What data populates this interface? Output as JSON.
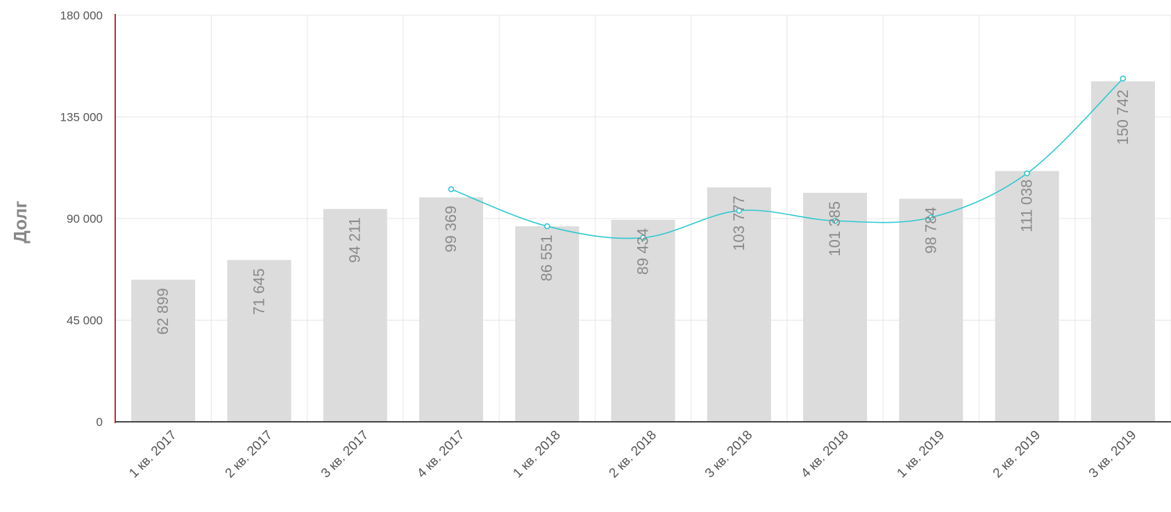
{
  "chart_data": {
    "type": "bar",
    "title": "",
    "xlabel": "",
    "ylabel": "Долг",
    "ylim": [
      0,
      180000
    ],
    "yticks": [
      0,
      45000,
      90000,
      135000,
      180000
    ],
    "ytick_labels": [
      "0",
      "45 000",
      "90 000",
      "135 000",
      "180 000"
    ],
    "grid": true,
    "categories": [
      "1 кв. 2017",
      "2 кв. 2017",
      "3 кв. 2017",
      "4 кв. 2017",
      "1 кв. 2018",
      "2 кв. 2018",
      "3 кв. 2018",
      "4 кв. 2018",
      "1 кв. 2019",
      "2 кв. 2019",
      "3 кв. 2019"
    ],
    "series": [
      {
        "type": "bar",
        "values": [
          62899,
          71645,
          94211,
          99369,
          86551,
          89434,
          103777,
          101385,
          98784,
          111038,
          150742
        ],
        "labels": [
          "62 899",
          "71 645",
          "94 211",
          "99 369",
          "86 551",
          "89 434",
          "103 777",
          "101 385",
          "98 784",
          "111 038",
          "150 742"
        ]
      },
      {
        "type": "line",
        "smooth": true,
        "values": [
          null,
          null,
          null,
          103000,
          86600,
          81500,
          93500,
          89000,
          90500,
          110000,
          152000
        ]
      }
    ],
    "colors": {
      "bar": "#dcdcdc",
      "line": "#2bc9d0",
      "bar_label": "#8a8a8a",
      "grid": "#e6e6e6",
      "y_axis": "#c0282d",
      "x_axis": "#444444",
      "tick_text": "#555555",
      "ylabel_text": "#888888"
    }
  }
}
